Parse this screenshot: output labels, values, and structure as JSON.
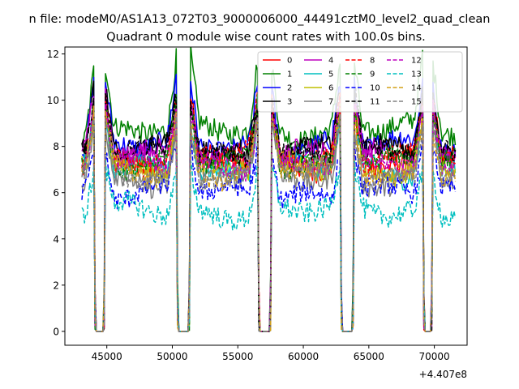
{
  "figure": {
    "suptitle": "n file: modeM0/AS1A13_072T03_9000006000_44491cztM0_level2_quad_clean",
    "title": "Quadrant 0 module wise count rates with 100.0s bins.",
    "offset_text": "+4.407e8"
  },
  "chart_data": {
    "type": "line",
    "title": "Quadrant 0 module wise count rates with 100.0s bins.",
    "xlabel": "",
    "ylabel": "",
    "x_offset": 440700000,
    "xlim": [
      41800,
      72500
    ],
    "ylim": [
      -0.6,
      12.3
    ],
    "x_ticks": [
      45000,
      50000,
      55000,
      60000,
      65000,
      70000
    ],
    "x_tick_labels": [
      "45000",
      "50000",
      "55000",
      "60000",
      "65000",
      "70000"
    ],
    "y_ticks": [
      0,
      2,
      4,
      6,
      8,
      10,
      12
    ],
    "y_tick_labels": [
      "0",
      "2",
      "4",
      "6",
      "8",
      "10",
      "12"
    ],
    "grid": false,
    "legend_position": "top-right",
    "legend_columns": 4,
    "bin_seconds": 100,
    "x_range": [
      43100,
      71600
    ],
    "gaps": [
      [
        44050,
        44850
      ],
      [
        50350,
        51350
      ],
      [
        56550,
        57550
      ],
      [
        62850,
        63850
      ],
      [
        69150,
        69850
      ]
    ],
    "series": [
      {
        "name": "0",
        "color": "#ff0000",
        "dash": "solid",
        "level": 7.3
      },
      {
        "name": "1",
        "color": "#008000",
        "dash": "solid",
        "level": 8.7
      },
      {
        "name": "2",
        "color": "#0000ff",
        "dash": "solid",
        "level": 8.0
      },
      {
        "name": "3",
        "color": "#000000",
        "dash": "solid",
        "level": 7.8
      },
      {
        "name": "4",
        "color": "#bf00bf",
        "dash": "solid",
        "level": 7.6
      },
      {
        "name": "5",
        "color": "#00bfbf",
        "dash": "solid",
        "level": 7.0
      },
      {
        "name": "6",
        "color": "#bfbf00",
        "dash": "solid",
        "level": 7.1
      },
      {
        "name": "7",
        "color": "#808080",
        "dash": "solid",
        "level": 6.6
      },
      {
        "name": "8",
        "color": "#ff0000",
        "dash": "dashed",
        "level": 7.5
      },
      {
        "name": "9",
        "color": "#008000",
        "dash": "dashed",
        "level": 7.3
      },
      {
        "name": "10",
        "color": "#0000ff",
        "dash": "dashed",
        "level": 6.0
      },
      {
        "name": "11",
        "color": "#000000",
        "dash": "dashed",
        "level": 7.7
      },
      {
        "name": "12",
        "color": "#bf00bf",
        "dash": "dashed",
        "level": 7.2
      },
      {
        "name": "13",
        "color": "#00bfbf",
        "dash": "dashed",
        "level": 5.2
      },
      {
        "name": "14",
        "color": "#d4a017",
        "dash": "dashed",
        "level": 6.9
      },
      {
        "name": "15",
        "color": "#808080",
        "dash": "dashed",
        "level": 6.8
      }
    ]
  }
}
